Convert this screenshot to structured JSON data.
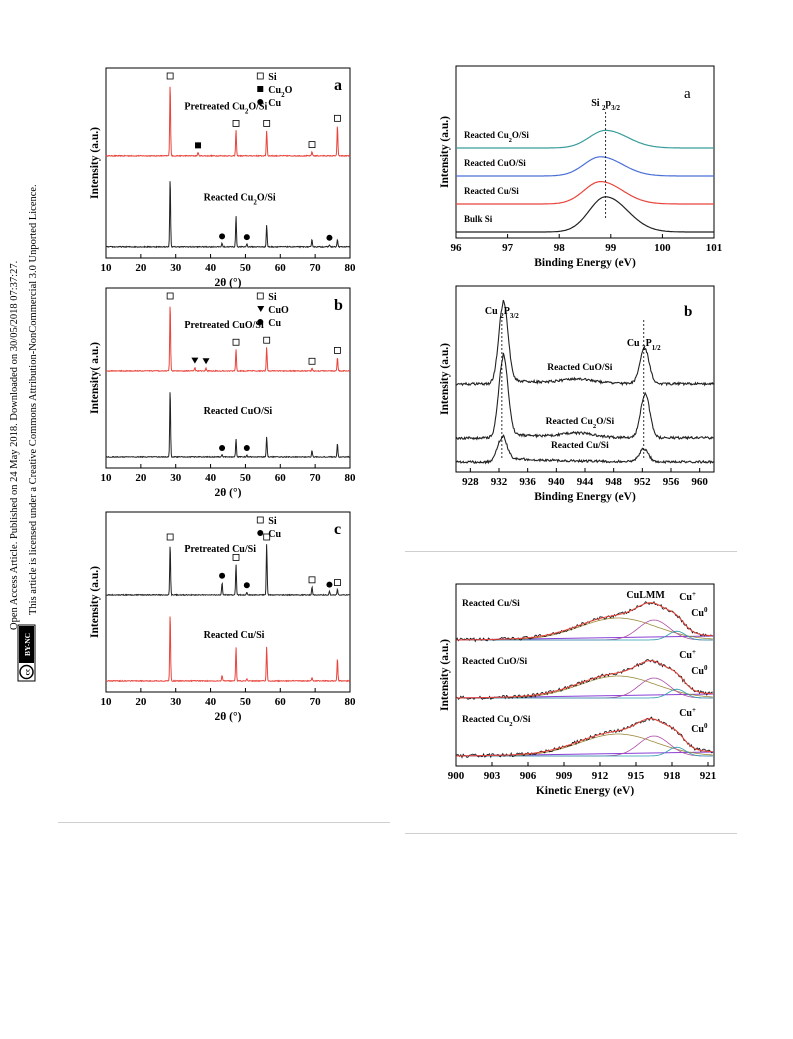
{
  "sidebar": {
    "line1": "Open Access Article. Published on 24 May 2018. Downloaded on 30/05/2018 07:37:27.",
    "line2": "This article is licensed under a Creative Commons Attribution-NonCommercial 3.0 Unported Licence.",
    "badge_cc": "cc",
    "badge_by": "BY-NC"
  },
  "colors": {
    "red": "#e8453c",
    "black": "#222222",
    "blue": "#4a6fd6",
    "teal": "#3a9c9c"
  },
  "chart_data": [
    {
      "id": "xrd_a",
      "type": "line",
      "panel_letter": "a",
      "xlabel": "2θ (°)",
      "ylabel": "Intensity (a.u.)",
      "xlim": [
        10,
        80
      ],
      "xticks": [
        10,
        20,
        30,
        40,
        50,
        60,
        70,
        80
      ],
      "legend": [
        {
          "symbol": "square-open",
          "label": "Si"
        },
        {
          "symbol": "square-filled",
          "label": "Cu2O"
        },
        {
          "symbol": "circle-filled",
          "label": "Cu"
        }
      ],
      "series": [
        {
          "name": "Pretreated Cu2O/Si",
          "color": "#e8453c",
          "offset": 1,
          "peaks": [
            [
              28.4,
              1.0
            ],
            [
              36.4,
              0.05
            ],
            [
              47.3,
              0.35
            ],
            [
              56.1,
              0.35
            ],
            [
              69.1,
              0.06
            ],
            [
              76.4,
              0.42
            ]
          ],
          "markers": [
            [
              "sq",
              28.4
            ],
            [
              "sqf",
              36.4
            ],
            [
              "sq",
              47.3
            ],
            [
              "sq",
              56.1
            ],
            [
              "sq",
              69.1
            ],
            [
              "sq",
              76.4
            ]
          ]
        },
        {
          "name": "Reacted Cu2O/Si",
          "color": "#222222",
          "offset": 0,
          "peaks": [
            [
              28.4,
              0.95
            ],
            [
              43.3,
              0.05
            ],
            [
              47.3,
              0.42
            ],
            [
              50.4,
              0.04
            ],
            [
              56.1,
              0.3
            ],
            [
              69.1,
              0.1
            ],
            [
              74.1,
              0.03
            ],
            [
              76.4,
              0.1
            ]
          ],
          "markers": [
            [
              "ci",
              43.3
            ],
            [
              "ci",
              50.4
            ],
            [
              "ci",
              74.1
            ]
          ]
        }
      ]
    },
    {
      "id": "xrd_b",
      "type": "line",
      "panel_letter": "b",
      "xlabel": "2θ (°)",
      "ylabel": "Intensity( a.u.)",
      "xlim": [
        10,
        80
      ],
      "xticks": [
        10,
        20,
        30,
        40,
        50,
        60,
        70,
        80
      ],
      "legend": [
        {
          "symbol": "square-open",
          "label": "Si"
        },
        {
          "symbol": "triangle-filled",
          "label": "CuO"
        },
        {
          "symbol": "circle-filled",
          "label": "Cu"
        }
      ],
      "series": [
        {
          "name": "Pretreated CuO/Si",
          "color": "#e8453c",
          "offset": 1,
          "peaks": [
            [
              28.4,
              1.0
            ],
            [
              35.5,
              0.05
            ],
            [
              38.7,
              0.04
            ],
            [
              47.3,
              0.32
            ],
            [
              56.1,
              0.35
            ],
            [
              69.1,
              0.04
            ],
            [
              76.4,
              0.2
            ]
          ],
          "markers": [
            [
              "sq",
              28.4
            ],
            [
              "tri",
              35.5
            ],
            [
              "tri",
              38.7
            ],
            [
              "sq",
              47.3
            ],
            [
              "sq",
              56.1
            ],
            [
              "sq",
              69.1
            ],
            [
              "sq",
              76.4
            ]
          ]
        },
        {
          "name": "Reacted CuO/Si",
          "color": "#222222",
          "offset": 0,
          "peaks": [
            [
              28.4,
              1.0
            ],
            [
              43.3,
              0.03
            ],
            [
              47.3,
              0.27
            ],
            [
              50.4,
              0.03
            ],
            [
              56.1,
              0.3
            ],
            [
              69.1,
              0.1
            ],
            [
              76.4,
              0.2
            ]
          ],
          "markers": [
            [
              "ci",
              43.3
            ],
            [
              "ci",
              50.4
            ]
          ]
        }
      ]
    },
    {
      "id": "xrd_c",
      "type": "line",
      "panel_letter": "c",
      "xlabel": "2θ (°)",
      "ylabel": "Intensity (a.u.)",
      "xlim": [
        10,
        80
      ],
      "xticks": [
        10,
        20,
        30,
        40,
        50,
        60,
        70,
        80
      ],
      "legend": [
        {
          "symbol": "square-open",
          "label": "Si"
        },
        {
          "symbol": "circle-filled",
          "label": "Cu"
        }
      ],
      "series": [
        {
          "name": "Pretreated Cu/Si",
          "color": "#222222",
          "offset": 1,
          "peaks": [
            [
              28.4,
              0.75
            ],
            [
              43.3,
              0.18
            ],
            [
              47.3,
              0.45
            ],
            [
              50.4,
              0.04
            ],
            [
              56.1,
              0.75
            ],
            [
              69.1,
              0.12
            ],
            [
              74.1,
              0.05
            ],
            [
              76.4,
              0.08
            ]
          ],
          "markers": [
            [
              "sq",
              28.4
            ],
            [
              "ci",
              43.3
            ],
            [
              "sq",
              47.3
            ],
            [
              "ci",
              50.4
            ],
            [
              "sq",
              56.1
            ],
            [
              "sq",
              69.1
            ],
            [
              "ci",
              74.1
            ],
            [
              "sq",
              76.4
            ]
          ]
        },
        {
          "name": "Reacted Cu/Si",
          "color": "#e8453c",
          "offset": 0,
          "peaks": [
            [
              28.4,
              1.0
            ],
            [
              43.3,
              0.08
            ],
            [
              47.3,
              0.5
            ],
            [
              50.4,
              0.03
            ],
            [
              56.1,
              0.5
            ],
            [
              69.1,
              0.05
            ],
            [
              76.4,
              0.33
            ]
          ],
          "markers": []
        }
      ]
    },
    {
      "id": "xps_si",
      "type": "line",
      "panel_letter": "a",
      "xlabel": "Binding Energy (eV)",
      "ylabel": "Intensity (a.u.)",
      "xlim": [
        96,
        101
      ],
      "xticks": [
        96,
        97,
        98,
        99,
        100,
        101
      ],
      "annotation": {
        "label": "Si 2p3/2",
        "x": 98.9
      },
      "series": [
        {
          "name": "Reacted Cu2O/Si",
          "color": "#3a9c9c",
          "center": 98.9,
          "height": 0.55,
          "offset": 3
        },
        {
          "name": "Reacted CuO/Si",
          "color": "#4a6fd6",
          "center": 98.8,
          "height": 0.6,
          "offset": 2
        },
        {
          "name": "Reacted Cu/Si",
          "color": "#e8453c",
          "center": 98.8,
          "height": 0.7,
          "offset": 1
        },
        {
          "name": "Bulk Si",
          "color": "#222222",
          "center": 98.9,
          "height": 1.1,
          "offset": 0
        }
      ]
    },
    {
      "id": "xps_cu",
      "type": "line",
      "panel_letter": "b",
      "xlabel": "Binding Energy (eV)",
      "ylabel": "Intensity (a.u.)",
      "xlim": [
        926,
        962
      ],
      "xticks": [
        928,
        932,
        936,
        940,
        944,
        948,
        952,
        956,
        960
      ],
      "annotations": [
        {
          "label": "Cu 2P3/2",
          "x": 932.4
        },
        {
          "label": "Cu 2P1/2",
          "x": 952.2
        }
      ],
      "series": [
        {
          "name": "Reacted CuO/Si",
          "color": "#222222",
          "offset": 2,
          "peaks": [
            [
              932.6,
              1.0
            ],
            [
              952.3,
              0.45
            ]
          ]
        },
        {
          "name": "Reacted Cu2O/Si",
          "color": "#222222",
          "offset": 1,
          "peaks": [
            [
              932.6,
              1.0
            ],
            [
              952.4,
              0.55
            ]
          ]
        },
        {
          "name": "Reacted Cu/Si",
          "color": "#222222",
          "offset": 0,
          "peaks": [
            [
              932.4,
              0.3
            ],
            [
              952.2,
              0.16
            ]
          ]
        }
      ]
    },
    {
      "id": "auger",
      "type": "line",
      "xlabel": "Kinetic Energy (eV)",
      "ylabel": "Intensity (a.u.)",
      "xlim": [
        900,
        921.5
      ],
      "xticks": [
        900,
        903,
        906,
        909,
        912,
        915,
        918,
        921
      ],
      "labels": [
        "CuLMM",
        "Cu+",
        "Cu0"
      ],
      "series": [
        {
          "name": "Reacted Cu/Si",
          "offset": 2
        },
        {
          "name": "Reacted CuO/Si",
          "offset": 1
        },
        {
          "name": "Reacted Cu2O/Si",
          "offset": 0
        }
      ]
    }
  ]
}
